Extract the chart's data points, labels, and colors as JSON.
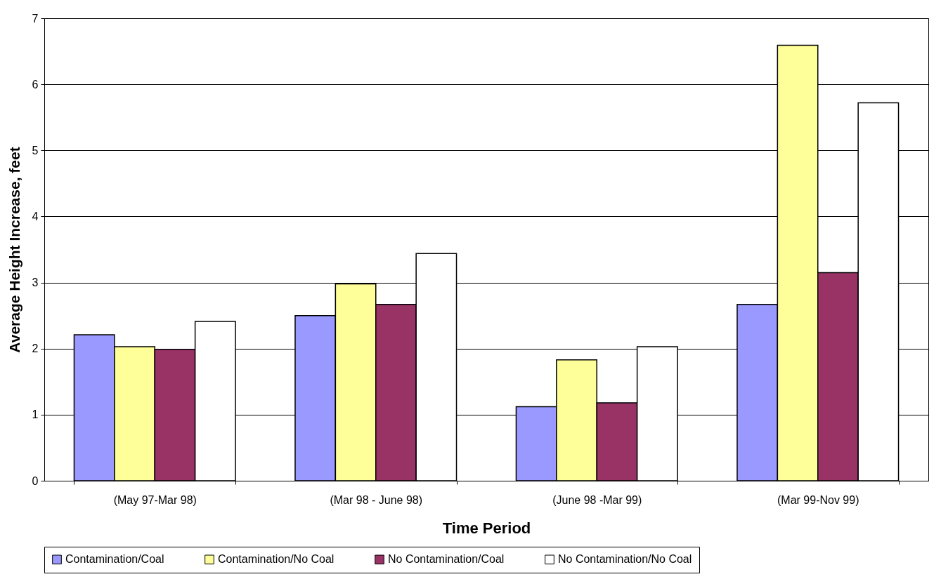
{
  "chart_data": {
    "type": "bar",
    "xlabel": "Time Period",
    "ylabel": "Average Height Increase, feet",
    "categories": [
      "(May 97-Mar 98)",
      "(Mar 98 - June 98)",
      "(June 98 -Mar 99)",
      "(Mar 99-Nov 99)"
    ],
    "series": [
      {
        "name": "Contamination/Coal",
        "color": "#9999ff",
        "values": [
          2.21,
          2.5,
          1.12,
          2.67
        ]
      },
      {
        "name": "Contamination/No Coal",
        "color": "#ffff99",
        "values": [
          2.03,
          2.98,
          1.83,
          6.59
        ]
      },
      {
        "name": "No Contamination/Coal",
        "color": "#993366",
        "values": [
          1.99,
          2.67,
          1.18,
          3.15
        ]
      },
      {
        "name": "No Contamination/No Coal",
        "color": "#ffffff",
        "values": [
          2.41,
          3.44,
          2.03,
          5.72
        ]
      }
    ],
    "ylim": [
      0,
      7
    ],
    "yticks": [
      0,
      1,
      2,
      3,
      4,
      5,
      6,
      7
    ],
    "grid": "y",
    "legend": "bottom"
  }
}
